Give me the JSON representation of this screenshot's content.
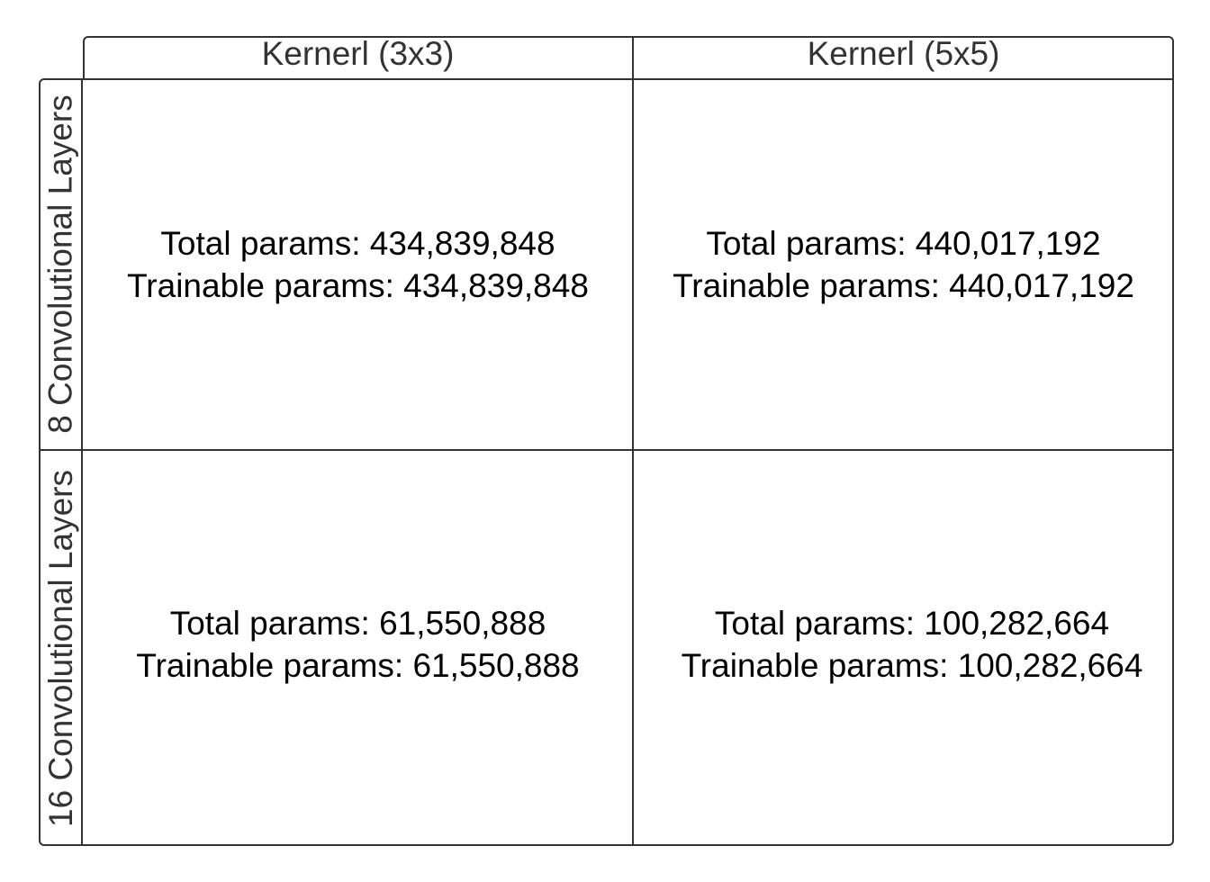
{
  "columns": [
    {
      "label": "Kernerl (3x3)"
    },
    {
      "label": "Kernerl (5x5)"
    }
  ],
  "rows": [
    {
      "label": "8 Convolutional Layers"
    },
    {
      "label": "16  Convolutional Layers"
    }
  ],
  "cells": [
    [
      {
        "line1": "Total params: 434,839,848",
        "line2": "Trainable params: 434,839,848"
      },
      {
        "line1": "Total params: 440,017,192",
        "line2": "Trainable params: 440,017,192"
      }
    ],
    [
      {
        "line1": "Total params: 61,550,888",
        "line2": "Trainable params: 61,550,888"
      },
      {
        "line1": "Total params: 100,282,664",
        "line2": "Trainable params: 100,282,664"
      }
    ]
  ],
  "colors": {
    "border": "#333333",
    "header_text": "#333333",
    "cell_text": "#000000",
    "background": "#ffffff"
  }
}
